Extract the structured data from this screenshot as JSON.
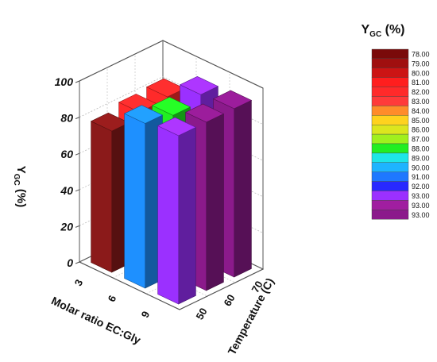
{
  "chart_data": {
    "type": "bar3d",
    "title": "",
    "xlabel": "Molar ratio EC:Gly",
    "ylabel": "Temperature (C)",
    "zlabel_main": "Y",
    "zlabel_sub": "GC",
    "zlabel_unit": "(%)",
    "x_categories": [
      "3",
      "6",
      "9"
    ],
    "y_categories": [
      "50",
      "60",
      "70"
    ],
    "zlim": [
      0,
      100
    ],
    "z_ticks": [
      "0",
      "20",
      "40",
      "60",
      "80",
      "100"
    ],
    "grid": true,
    "bars": [
      {
        "x": "3",
        "y": "50",
        "value": 78,
        "color": "#8B1A1A"
      },
      {
        "x": "3",
        "y": "60",
        "value": 81,
        "color": "#FF2A2A"
      },
      {
        "x": "3",
        "y": "70",
        "value": 82,
        "color": "#FF2A2A"
      },
      {
        "x": "6",
        "y": "50",
        "value": 91,
        "color": "#1E90FF"
      },
      {
        "x": "6",
        "y": "60",
        "value": 88,
        "color": "#22EE22"
      },
      {
        "x": "6",
        "y": "70",
        "value": 92,
        "color": "#9B30FF"
      },
      {
        "x": "9",
        "y": "50",
        "value": 93,
        "color": "#9B30FF"
      },
      {
        "x": "9",
        "y": "60",
        "value": 93,
        "color": "#8B1A8B"
      },
      {
        "x": "9",
        "y": "70",
        "value": 93,
        "color": "#8B1A8B"
      }
    ],
    "legend": {
      "title_main": "Y",
      "title_sub": "GC",
      "title_unit": "(%)",
      "placement": "right",
      "entries": [
        {
          "label": "78.00",
          "color": "#7A0A0A"
        },
        {
          "label": "79.00",
          "color": "#A00F0F"
        },
        {
          "label": "80.00",
          "color": "#CC1414"
        },
        {
          "label": "81.00",
          "color": "#FF1E1E"
        },
        {
          "label": "82.00",
          "color": "#FF2A2A"
        },
        {
          "label": "83.00",
          "color": "#FF3A3A"
        },
        {
          "label": "84.00",
          "color": "#FF8C2A"
        },
        {
          "label": "85.00",
          "color": "#FFD21E"
        },
        {
          "label": "86.00",
          "color": "#DCE61E"
        },
        {
          "label": "87.00",
          "color": "#A0F01E"
        },
        {
          "label": "88.00",
          "color": "#22EE22"
        },
        {
          "label": "89.00",
          "color": "#1EE6E6"
        },
        {
          "label": "90.00",
          "color": "#1EB4FF"
        },
        {
          "label": "91.00",
          "color": "#1E78FF"
        },
        {
          "label": "92.00",
          "color": "#2828FF"
        },
        {
          "label": "93.00",
          "color": "#9B30FF"
        },
        {
          "label": "93.00",
          "color": "#A01EA0"
        },
        {
          "label": "93.00",
          "color": "#8B1A8B"
        }
      ]
    }
  }
}
